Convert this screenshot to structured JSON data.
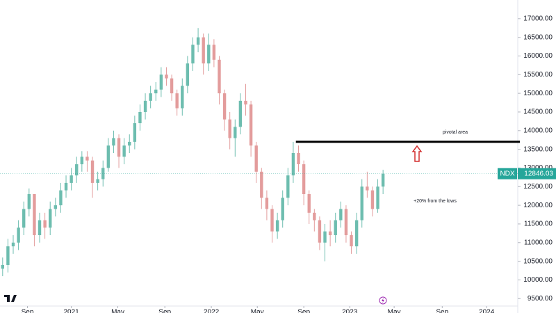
{
  "chart_data": {
    "type": "candlestick",
    "symbol": "NDX",
    "open": [
      10300,
      10400,
      10900,
      11000,
      11400,
      11900,
      12300,
      11200,
      11600,
      11400,
      11900,
      12000,
      12400,
      12600,
      12800,
      13100,
      13300,
      13200,
      12600,
      12700,
      13000,
      13600,
      13800,
      13300,
      13600,
      13700,
      14200,
      14500,
      14800,
      15000,
      15100,
      15500,
      15400,
      15000,
      14600,
      15200,
      15800,
      16300,
      16500,
      15800,
      16300,
      15900,
      15000,
      14300,
      13800,
      14100,
      14800,
      14700,
      13600,
      12900,
      12200,
      11900,
      11300,
      11600,
      12200,
      12800,
      13400,
      13100,
      12300,
      11800,
      11600,
      11000,
      11300,
      11200,
      11600,
      11900,
      11200,
      10900,
      11600,
      12500,
      12400,
      11900,
      12500
    ],
    "high": [
      10600,
      11100,
      11200,
      11600,
      12100,
      12450,
      12300,
      11800,
      11800,
      12100,
      12200,
      12600,
      12800,
      13000,
      13300,
      13450,
      13450,
      13300,
      12900,
      13200,
      13800,
      14000,
      13900,
      13800,
      13900,
      14400,
      14700,
      15000,
      15200,
      15300,
      15700,
      15700,
      15500,
      15100,
      15400,
      16000,
      16500,
      16750,
      16600,
      16600,
      16450,
      16000,
      15100,
      14500,
      14300,
      15000,
      15250,
      14800,
      13700,
      13000,
      12400,
      12000,
      11800,
      12400,
      13000,
      13700,
      13600,
      13200,
      12400,
      11900,
      11700,
      11500,
      11600,
      11800,
      12100,
      12000,
      11300,
      11800,
      12700,
      12900,
      12500,
      12700,
      12950
    ],
    "low": [
      10100,
      10200,
      10700,
      10800,
      11200,
      11700,
      10900,
      11000,
      11100,
      11200,
      11700,
      11800,
      12200,
      12400,
      12600,
      12900,
      12900,
      12200,
      12400,
      12500,
      12900,
      13400,
      13000,
      13100,
      13400,
      13500,
      14000,
      14300,
      14600,
      14800,
      14900,
      15200,
      14800,
      14400,
      14400,
      15000,
      15600,
      16100,
      15500,
      15600,
      15700,
      14700,
      14000,
      13500,
      13300,
      13900,
      14400,
      13300,
      12600,
      11900,
      11600,
      11000,
      11100,
      11400,
      12000,
      12600,
      12900,
      12000,
      11500,
      11300,
      10800,
      10500,
      10900,
      11000,
      11400,
      11000,
      10700,
      10700,
      11400,
      12200,
      11700,
      11800,
      12300
    ],
    "close": [
      10400,
      10900,
      11000,
      11400,
      11900,
      12300,
      11200,
      11600,
      11400,
      11900,
      12000,
      12400,
      12600,
      12800,
      13100,
      13300,
      13200,
      12600,
      12700,
      13000,
      13600,
      13800,
      13300,
      13600,
      13700,
      14200,
      14500,
      14800,
      15000,
      15100,
      15500,
      15400,
      15000,
      14600,
      15200,
      15800,
      16300,
      16500,
      15800,
      16300,
      15900,
      15000,
      14300,
      13800,
      14100,
      14800,
      14700,
      13600,
      12900,
      12200,
      11900,
      11300,
      11600,
      12200,
      12800,
      13400,
      13100,
      12300,
      11800,
      11600,
      11000,
      11300,
      11200,
      11600,
      11900,
      11200,
      10900,
      11600,
      12500,
      12400,
      11900,
      12500,
      12846.03
    ],
    "up_color": "#6dbdaf",
    "down_color": "#e39c9c",
    "last_color": "#26a69a",
    "xlim": [
      -0.5,
      97.5
    ],
    "xticks": [
      {
        "value": 4.7,
        "label": "Sep"
      },
      {
        "value": 13,
        "label": "2021"
      },
      {
        "value": 21.8,
        "label": "May"
      },
      {
        "value": 30.7,
        "label": "Sep"
      },
      {
        "value": 39.5,
        "label": "2022"
      },
      {
        "value": 48.2,
        "label": "May"
      },
      {
        "value": 57,
        "label": "Sep"
      },
      {
        "value": 65.7,
        "label": "2023"
      },
      {
        "value": 74.1,
        "label": "May"
      },
      {
        "value": 83.2,
        "label": "Sep"
      },
      {
        "value": 91.6,
        "label": "2024"
      }
    ],
    "ylim": [
      9300,
      17500
    ],
    "yticks": [
      {
        "value": 9500,
        "label": "9500.00"
      },
      {
        "value": 10000,
        "label": "10000.00"
      },
      {
        "value": 10500,
        "label": "10500.00"
      },
      {
        "value": 11000,
        "label": "11000.00"
      },
      {
        "value": 11500,
        "label": "11500.00"
      },
      {
        "value": 12000,
        "label": "12000.00"
      },
      {
        "value": 12500,
        "label": "12500.00"
      },
      {
        "value": 13000,
        "label": "13000.00"
      },
      {
        "value": 13500,
        "label": "13500.00"
      },
      {
        "value": 14000,
        "label": "14000.00"
      },
      {
        "value": 14500,
        "label": "14500.00"
      },
      {
        "value": 15000,
        "label": "15000.00"
      },
      {
        "value": 15500,
        "label": "15500.00"
      },
      {
        "value": 16000,
        "label": "16000.00"
      },
      {
        "value": 16500,
        "label": "16500.00"
      },
      {
        "value": 17000,
        "label": "17000.00"
      }
    ],
    "pivotal_level": 13700,
    "pivotal_start": 55.5,
    "annotations": [
      "pivotal area",
      "+20% from the lows"
    ]
  }
}
